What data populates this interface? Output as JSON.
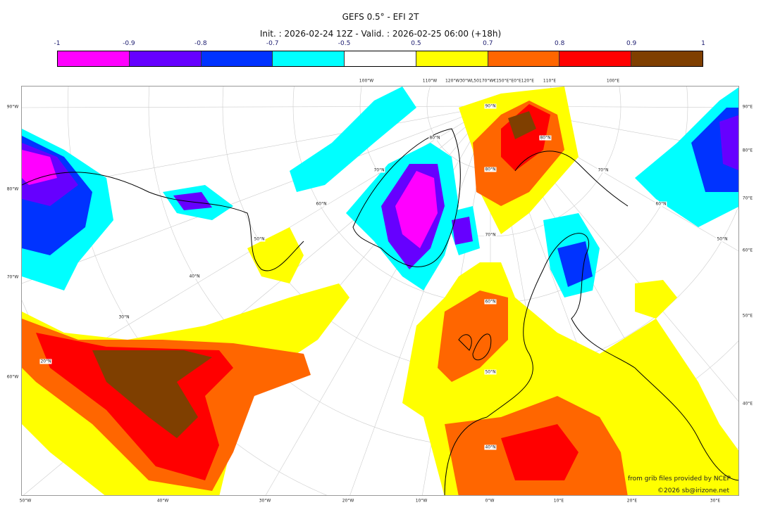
{
  "title": "GEFS 0.5° - EFI 2T",
  "subtitle": "Init. : 2026-02-24 12Z - Valid. : 2026-02-25 06:00 (+18h)",
  "colorbar": {
    "ticks": [
      "-1",
      "-0.9",
      "-0.8",
      "-0.7",
      "-0.5",
      "0.5",
      "0.7",
      "0.8",
      "0.9",
      "1"
    ],
    "colors": [
      "#ff00ff",
      "#6600ff",
      "#0033ff",
      "#00ffff",
      "#ffffff",
      "#ffff00",
      "#ff6600",
      "#ff0000",
      "#7f3f00"
    ]
  },
  "map": {
    "left_labels": [
      "90°W",
      "80°W",
      "70°W",
      "60°W"
    ],
    "bottom_labels": [
      "50°W",
      "40°W",
      "30°W",
      "20°W",
      "10°W",
      "0°W",
      "10°E",
      "20°E",
      "30°E"
    ],
    "right_labels": [
      "90°E",
      "80°E",
      "70°E",
      "60°E",
      "50°E",
      "40°E"
    ],
    "top_labels": [
      "100°W",
      "110°W",
      "120°W30°WL50170°W€150°E°E0°E120°E",
      "110°E",
      "100°E"
    ],
    "lat_labels": [
      "90°N",
      "80°N",
      "70°N",
      "60°N",
      "50°N",
      "40°N",
      "30°N",
      "20°N",
      "40°N",
      "50°N",
      "60°N",
      "70°N",
      "80°N",
      "80°N",
      "70°N",
      "60°N",
      "50°N"
    ]
  },
  "credits": {
    "source": "from grib files provided by NCEP",
    "copyright": "©2026 sb@irizone.net"
  }
}
